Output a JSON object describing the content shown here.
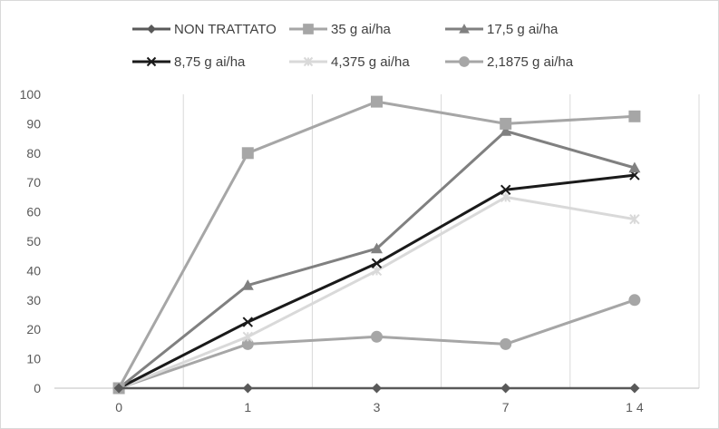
{
  "chart_data": {
    "type": "line",
    "categories": [
      "0",
      "1",
      "3",
      "7",
      "1 4"
    ],
    "ylim": [
      0,
      100
    ],
    "yticks": [
      0,
      10,
      20,
      30,
      40,
      50,
      60,
      70,
      80,
      90,
      100
    ],
    "grid": "vertical",
    "legend": "top",
    "series": [
      {
        "name": "NON TRATTATO",
        "values": [
          0,
          0,
          0,
          0,
          0
        ],
        "color": "#595959",
        "marker": "diamond",
        "width": 2.5
      },
      {
        "name": "35 g ai/ha",
        "values": [
          0,
          80,
          97.5,
          90,
          92.5
        ],
        "color": "#a6a6a6",
        "marker": "square",
        "width": 3
      },
      {
        "name": "17,5 g ai/ha",
        "values": [
          0,
          35,
          47.5,
          87.5,
          75
        ],
        "color": "#808080",
        "marker": "triangle",
        "width": 3
      },
      {
        "name": "8,75 g ai/ha",
        "values": [
          0,
          22.5,
          42.5,
          67.5,
          72.5
        ],
        "color": "#1a1a1a",
        "marker": "x",
        "width": 3
      },
      {
        "name": "4,375 g ai/ha",
        "values": [
          0,
          17.5,
          40,
          65,
          57.5
        ],
        "color": "#d9d9d9",
        "marker": "star",
        "width": 3
      },
      {
        "name": "2,1875 g ai/ha",
        "values": [
          0,
          15,
          17.5,
          15,
          30
        ],
        "color": "#a6a6a6",
        "marker": "circle",
        "width": 3
      }
    ]
  }
}
